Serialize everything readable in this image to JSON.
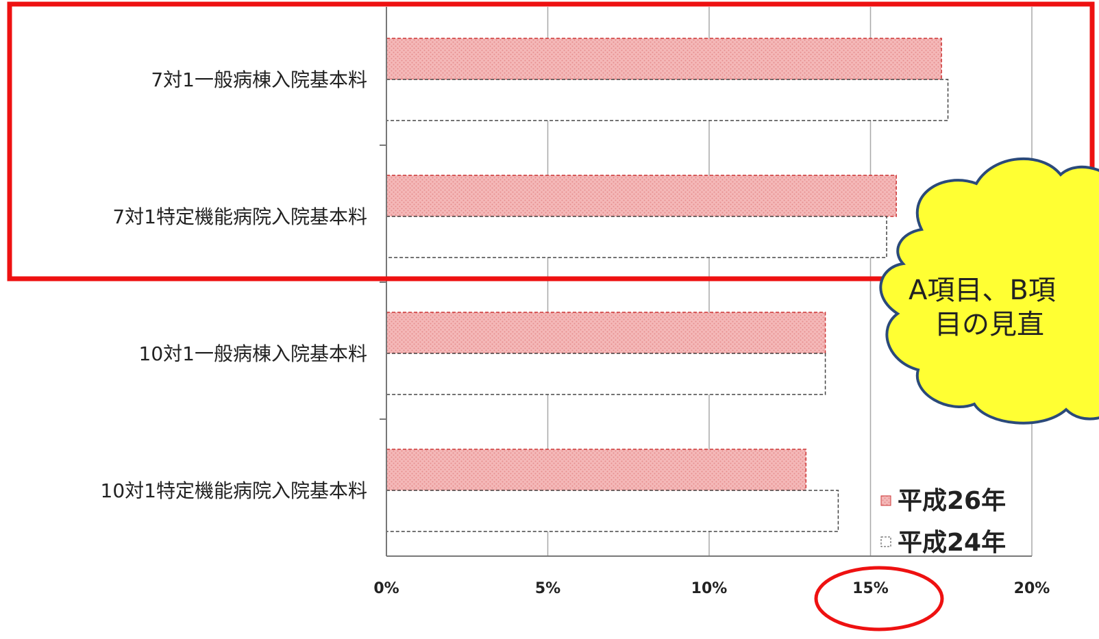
{
  "chart_data": {
    "type": "bar",
    "orientation": "horizontal",
    "categories": [
      "7対1一般病棟入院基本料",
      "7対1特定機能病院入院基本料",
      "10対1一般病棟入院基本料",
      "10対1特定機能病院入院基本料"
    ],
    "series": [
      {
        "name": "平成26年",
        "values": [
          17.2,
          15.8,
          13.6,
          13.0
        ],
        "color": "#f4b8b8"
      },
      {
        "name": "平成24年",
        "values": [
          17.4,
          15.5,
          13.6,
          14.0
        ],
        "color": "#ffffff"
      }
    ],
    "xlim": [
      0,
      20
    ],
    "xticks": [
      "0%",
      "5%",
      "10%",
      "15%",
      "20%"
    ],
    "title": "",
    "xlabel": "",
    "ylabel": "",
    "grid": true,
    "legend_position": "bottom-right"
  },
  "annotations": {
    "highlight_box_color": "#ee1111",
    "tick_circle_color": "#ee1111",
    "circled_tick": "15%",
    "callout_text_line1": "A項目、B項",
    "callout_text_line2": "目の見直",
    "callout_fill": "#ffff33",
    "callout_stroke": "#2b4a7a"
  }
}
